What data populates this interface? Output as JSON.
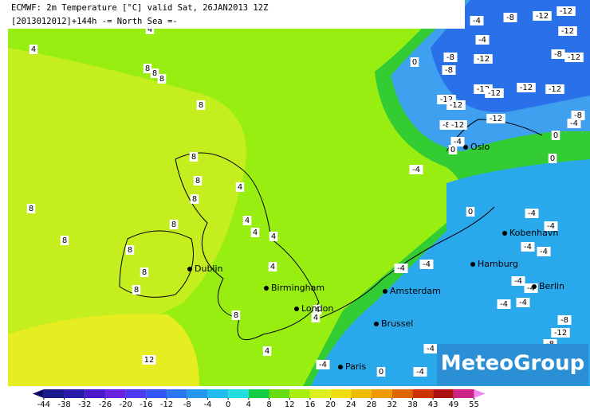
{
  "header": {
    "line1": "ECMWF: 2m Temperature [°C] valid Sat, 26JAN2013 12Z",
    "line2": "[2013012012]+144h  -= North Sea =-"
  },
  "logo": "MeteoGroup",
  "cities": [
    "Dublin",
    "Birmingham",
    "London",
    "Amsterdam",
    "Brussel",
    "Paris",
    "Hamburg",
    "Kobenhavn",
    "Berlin",
    "Oslo"
  ],
  "contour_labels": [
    -4,
    -8,
    -12,
    -12,
    -4,
    -12,
    -8,
    -8,
    -12,
    -8,
    -12,
    -12,
    -12,
    -12,
    -12,
    -12,
    -12,
    -12,
    -8,
    -12,
    -8,
    -4,
    -4,
    0,
    0,
    0,
    -4,
    0,
    4,
    4,
    8,
    8,
    8,
    8,
    8,
    8,
    8,
    8,
    8,
    8,
    8,
    8,
    8,
    4,
    4,
    4,
    4,
    4,
    0,
    -4,
    -4,
    -4,
    -4,
    -4,
    -4,
    -4,
    -4,
    -4,
    -4,
    -8,
    -12,
    -8,
    -4,
    4,
    4,
    8,
    4,
    12,
    -4,
    0,
    -4
  ],
  "legend": {
    "ticks": [
      -44,
      -38,
      -32,
      -26,
      -20,
      -16,
      -12,
      -8,
      -4,
      0,
      4,
      8,
      12,
      16,
      20,
      24,
      28,
      32,
      38,
      43,
      49,
      55
    ],
    "colors": [
      "#1a1a8c",
      "#2a1aa8",
      "#4a1ac8",
      "#6a22e0",
      "#4a3af0",
      "#3355f5",
      "#2a77ee",
      "#2299ee",
      "#22bbee",
      "#22dddd",
      "#11cc44",
      "#66dd11",
      "#aaee11",
      "#ddee22",
      "#eedd11",
      "#eebb00",
      "#ee9900",
      "#dd6600",
      "#cc3300",
      "#aa1111",
      "#cc2288"
    ],
    "low": "#0a0a66",
    "high": "#ee88ee"
  }
}
